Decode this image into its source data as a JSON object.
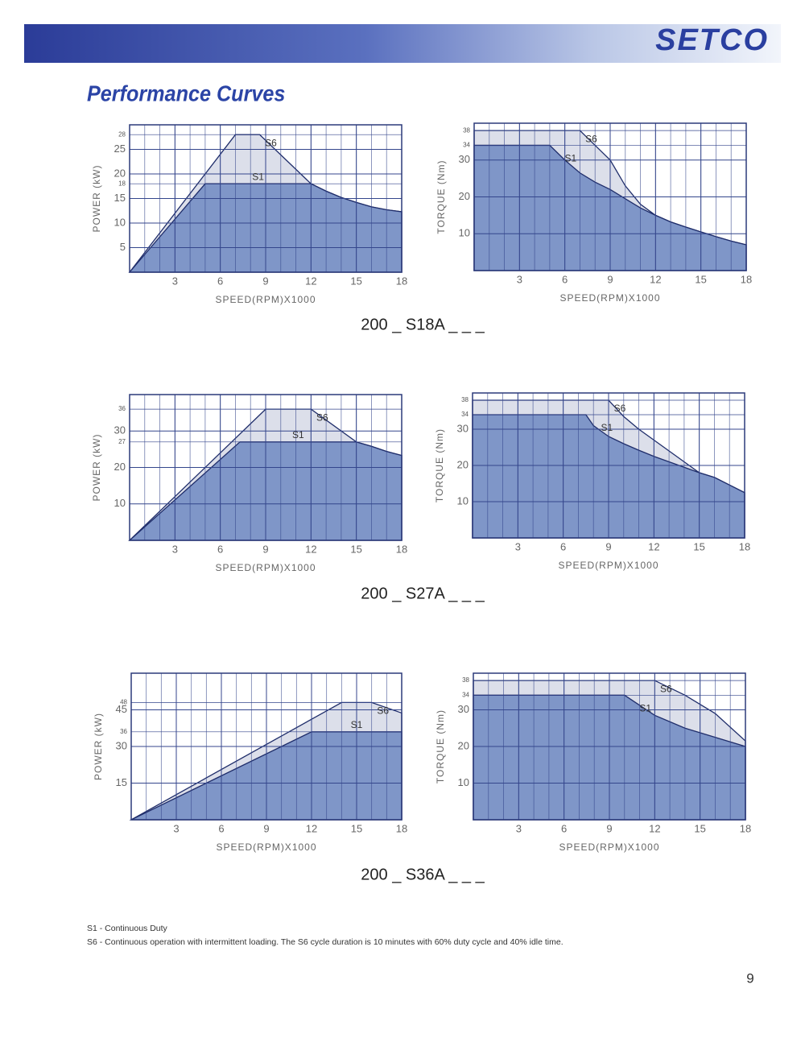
{
  "header": {
    "brand": "SETCO",
    "title": "Performance Curves"
  },
  "chart_data": [
    {
      "type": "area",
      "ylabel": "POWER (kW)",
      "xlabel": "SPEED(RPM)X1000",
      "xlim": [
        0,
        18
      ],
      "xticks": [
        3,
        6,
        9,
        12,
        15,
        18
      ],
      "ylim": [
        0,
        30
      ],
      "yticks": [
        5,
        10,
        15,
        20,
        25
      ],
      "yticks_small": [
        18,
        28
      ],
      "grid": true,
      "series": [
        {
          "name": "S6",
          "color": "#dcdfea",
          "x": [
            0,
            7,
            8.6,
            12,
            13,
            14,
            15,
            16,
            17,
            18
          ],
          "values": [
            0,
            28,
            28,
            18,
            16.5,
            15.2,
            14.2,
            13.3,
            12.7,
            12.3
          ]
        },
        {
          "name": "S1",
          "color": "#7f96c8",
          "x": [
            0,
            5,
            12,
            13,
            14,
            15,
            16,
            17,
            18
          ],
          "values": [
            0,
            18,
            18,
            16.5,
            15.2,
            14.2,
            13.3,
            12.7,
            12.3
          ]
        }
      ]
    },
    {
      "type": "area",
      "ylabel": "TORQUE (Nm)",
      "xlabel": "SPEED(RPM)X1000",
      "xlim": [
        0,
        18
      ],
      "xticks": [
        3,
        6,
        9,
        12,
        15,
        18
      ],
      "ylim": [
        0,
        40
      ],
      "yticks": [
        10,
        20,
        30
      ],
      "yticks_small": [
        34,
        38
      ],
      "grid": true,
      "series": [
        {
          "name": "S6",
          "color": "#dcdfea",
          "x": [
            0,
            7,
            8,
            9,
            10,
            11,
            12,
            13,
            14,
            15,
            16,
            17,
            18
          ],
          "values": [
            38,
            38,
            34,
            30,
            23,
            18,
            15,
            13.2,
            11.8,
            10.5,
            9.2,
            8,
            7
          ]
        },
        {
          "name": "S1",
          "color": "#7f96c8",
          "x": [
            0,
            5,
            6,
            7,
            8,
            9,
            10,
            11,
            12,
            13,
            14,
            15,
            16,
            17,
            18
          ],
          "values": [
            34,
            34,
            30,
            26.5,
            24,
            22,
            19.5,
            17,
            15,
            13.2,
            11.8,
            10.5,
            9.2,
            8,
            7
          ]
        }
      ]
    },
    {
      "type": "area",
      "ylabel": "POWER (kW)",
      "xlabel": "SPEED(RPM)X1000",
      "xlim": [
        0,
        18
      ],
      "xticks": [
        3,
        6,
        9,
        12,
        15,
        18
      ],
      "ylim": [
        0,
        40
      ],
      "yticks": [
        10,
        20,
        30
      ],
      "yticks_small": [
        27,
        36
      ],
      "grid": true,
      "series": [
        {
          "name": "S6",
          "color": "#dcdfea",
          "x": [
            0,
            9,
            12,
            15,
            16,
            17,
            18
          ],
          "values": [
            0,
            36,
            36,
            27,
            25.8,
            24.4,
            23.3
          ]
        },
        {
          "name": "S1",
          "color": "#7f96c8",
          "x": [
            0,
            7.3,
            15,
            16,
            17,
            18
          ],
          "values": [
            0,
            27,
            27,
            25.8,
            24.4,
            23.3
          ]
        }
      ]
    },
    {
      "type": "area",
      "ylabel": "TORQUE (Nm)",
      "xlabel": "SPEED(RPM)X1000",
      "xlim": [
        0,
        18
      ],
      "xticks": [
        3,
        6,
        9,
        12,
        15,
        18
      ],
      "ylim": [
        0,
        40
      ],
      "yticks": [
        10,
        20,
        30
      ],
      "yticks_small": [
        34,
        38
      ],
      "grid": true,
      "series": [
        {
          "name": "S6",
          "color": "#dcdfea",
          "x": [
            0,
            9,
            10,
            11,
            12,
            13,
            14,
            15,
            16,
            17,
            18
          ],
          "values": [
            38,
            38,
            33.5,
            30,
            27,
            24,
            21,
            18,
            16.7,
            14.6,
            12.5
          ]
        },
        {
          "name": "S1",
          "color": "#7f96c8",
          "x": [
            0,
            7.5,
            8,
            9,
            10,
            11,
            12,
            13,
            14,
            15,
            16,
            17,
            18
          ],
          "values": [
            34,
            34,
            31,
            28,
            26,
            24.2,
            22.5,
            21,
            19.5,
            18,
            16.7,
            14.6,
            12.5
          ]
        }
      ]
    },
    {
      "type": "area",
      "ylabel": "POWER (kW)",
      "xlabel": "SPEED(RPM)X1000",
      "xlim": [
        0,
        18
      ],
      "xticks": [
        3,
        6,
        9,
        12,
        15,
        18
      ],
      "ylim": [
        0,
        60
      ],
      "yticks": [
        15,
        30,
        45
      ],
      "yticks_small": [
        36,
        48
      ],
      "grid": true,
      "series": [
        {
          "name": "S6",
          "color": "#dcdfea",
          "x": [
            0,
            14,
            16,
            18
          ],
          "values": [
            0,
            48,
            48,
            43.7
          ]
        },
        {
          "name": "S1",
          "color": "#7f96c8",
          "x": [
            0,
            12,
            18
          ],
          "values": [
            0,
            36,
            36
          ]
        }
      ]
    },
    {
      "type": "area",
      "ylabel": "TORQUE (Nm)",
      "xlabel": "SPEED(RPM)X1000",
      "xlim": [
        0,
        18
      ],
      "xticks": [
        3,
        6,
        9,
        12,
        15,
        18
      ],
      "ylim": [
        0,
        40
      ],
      "yticks": [
        10,
        20,
        30
      ],
      "yticks_small": [
        34,
        38
      ],
      "grid": true,
      "series": [
        {
          "name": "S6",
          "color": "#dcdfea",
          "x": [
            0,
            12,
            14,
            16,
            18
          ],
          "values": [
            38,
            38,
            34,
            29,
            21.5
          ]
        },
        {
          "name": "S1",
          "color": "#7f96c8",
          "x": [
            0,
            10,
            12,
            14,
            16,
            18
          ],
          "values": [
            34,
            34,
            28.5,
            25,
            22.5,
            20
          ]
        }
      ]
    }
  ],
  "models": [
    "200 _ S18A _ _ _",
    "200 _ S27A _ _ _",
    "200 _ S36A _ _ _"
  ],
  "footnotes": [
    "S1 - Continuous Duty",
    "S6 - Continuous operation with intermittent loading. The S6 cycle duration is 10 minutes with 60% duty cycle and 40% idle time."
  ],
  "page_number": "9"
}
